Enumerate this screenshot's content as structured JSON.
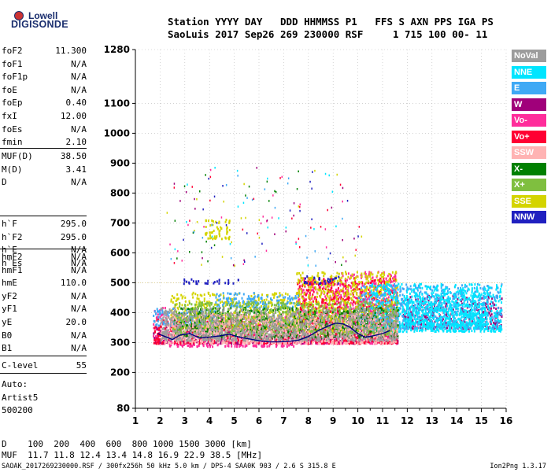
{
  "logo": {
    "line1": "Lowell",
    "line2": "DIGISONDE"
  },
  "header": {
    "labels": "Station YYYY DAY   DDD HHMMSS P1   FFS S AXN PPS IGA PS",
    "values": "SaoLuis 2017 Sep26 269 230000 RSF     1 715 100 00- 11"
  },
  "params_group1": [
    {
      "name": "foF2",
      "value": "11.300"
    },
    {
      "name": "foF1",
      "value": "N/A"
    },
    {
      "name": "foF1p",
      "value": "N/A"
    },
    {
      "name": "foE",
      "value": "N/A"
    },
    {
      "name": "foEp",
      "value": "0.40"
    },
    {
      "name": "fxI",
      "value": "12.00"
    },
    {
      "name": "foEs",
      "value": "N/A"
    },
    {
      "name": "fmin",
      "value": "2.10"
    }
  ],
  "params_group2": [
    {
      "name": "MUF(D)",
      "value": "38.50"
    },
    {
      "name": "M(D)",
      "value": "3.41"
    },
    {
      "name": "D",
      "value": "N/A"
    }
  ],
  "params_group3": [
    {
      "name": "h`F",
      "value": "295.0"
    },
    {
      "name": "h`F2",
      "value": "295.0"
    },
    {
      "name": "h`E",
      "value": "N/A"
    },
    {
      "name": "h`Es",
      "value": "N/A"
    }
  ],
  "params_group4": [
    {
      "name": "hmF2",
      "value": "N/A"
    },
    {
      "name": "hmF1",
      "value": "N/A"
    },
    {
      "name": "hmE",
      "value": "110.0"
    },
    {
      "name": "yF2",
      "value": "N/A"
    },
    {
      "name": "yF1",
      "value": "N/A"
    },
    {
      "name": "yE",
      "value": "20.0"
    },
    {
      "name": "B0",
      "value": "N/A"
    },
    {
      "name": "B1",
      "value": "N/A"
    }
  ],
  "clevel": {
    "name": "C-level",
    "value": "55"
  },
  "auto": {
    "line1": "Auto:",
    "line2": "Artist5",
    "line3": "500200"
  },
  "legend": [
    {
      "label": "NoVal",
      "color": "#9c9c9c"
    },
    {
      "label": "NNE",
      "color": "#00e5ff"
    },
    {
      "label": "E",
      "color": "#3fa9f5"
    },
    {
      "label": "W",
      "color": "#a0007a"
    },
    {
      "label": "Vo-",
      "color": "#ff2d9b"
    },
    {
      "label": "Vo+",
      "color": "#ff0033"
    },
    {
      "label": "SSW",
      "color": "#ffb3b3"
    },
    {
      "label": "X-",
      "color": "#008000"
    },
    {
      "label": "X+",
      "color": "#7fbf3f"
    },
    {
      "label": "SSE",
      "color": "#d4d400"
    },
    {
      "label": "NNW",
      "color": "#2020c0"
    }
  ],
  "bottom": {
    "d_row": "D    100  200  400  600  800 1000 1500 3000 [km]",
    "muf_row": "MUF  11.7 11.8 12.4 13.4 14.8 16.9 22.9 38.5 [MHz]"
  },
  "footer": {
    "left": "SAOAK_2017269230000.RSF / 300fx256h 50 kHz 5.0 km / DPS-4 SAA0K 903 / 2.6 S 315.8 E",
    "right": "Ion2Png 1.3.17"
  },
  "chart_data": {
    "type": "scatter",
    "title": "",
    "xlabel": "",
    "ylabel": "",
    "xlim": [
      1,
      16
    ],
    "ylim": [
      80,
      1280
    ],
    "x_ticks": [
      1,
      2,
      3,
      4,
      5,
      6,
      7,
      8,
      9,
      10,
      11,
      12,
      13,
      14,
      15,
      16
    ],
    "y_ticks": [
      80,
      200,
      300,
      400,
      500,
      600,
      700,
      800,
      900,
      1000,
      1100,
      1280
    ],
    "grid": "dotted",
    "legend_position": "right",
    "series": [
      {
        "label": "Vo-",
        "color": "#ff2d9b",
        "regions": [
          [
            1.7,
            2.3,
            300,
            420
          ],
          [
            2.3,
            7.5,
            290,
            400
          ],
          [
            7.5,
            9.2,
            300,
            520
          ],
          [
            9.2,
            11.6,
            300,
            540
          ]
        ]
      },
      {
        "label": "W",
        "color": "#a0007a",
        "regions": [
          [
            1.7,
            7.5,
            300,
            360
          ],
          [
            7.5,
            11.6,
            300,
            380
          ],
          [
            11.8,
            15.8,
            350,
            460
          ]
        ]
      },
      {
        "label": "Vo+",
        "color": "#ff0033",
        "regions": [
          [
            1.7,
            7.5,
            300,
            380
          ],
          [
            7.5,
            11.6,
            300,
            520
          ]
        ]
      },
      {
        "label": "SSE",
        "color": "#d4d400",
        "regions": [
          [
            2.4,
            7.5,
            350,
            470
          ],
          [
            7.5,
            11.6,
            340,
            540
          ],
          [
            3.8,
            4.8,
            650,
            720
          ]
        ]
      },
      {
        "label": "E",
        "color": "#3fa9f5",
        "regions": [
          [
            1.7,
            4.2,
            360,
            420
          ],
          [
            4.2,
            7.6,
            420,
            470
          ],
          [
            10.0,
            15.8,
            350,
            500
          ]
        ]
      },
      {
        "label": "NNE",
        "color": "#00e5ff",
        "regions": [
          [
            10.5,
            15.8,
            340,
            500
          ],
          [
            11.8,
            15.2,
            360,
            470
          ]
        ]
      },
      {
        "label": "NNW",
        "color": "#2020c0",
        "regions": [
          [
            2.9,
            5.2,
            500,
            515
          ],
          [
            7.8,
            9.2,
            500,
            525
          ]
        ]
      },
      {
        "label": "X-",
        "color": "#008000",
        "regions": [
          [
            2.5,
            11.6,
            320,
            420
          ]
        ]
      },
      {
        "label": "X+",
        "color": "#7fbf3f",
        "regions": [
          [
            2.5,
            11.6,
            330,
            440
          ]
        ]
      },
      {
        "label": "SSW",
        "color": "#ffb3b3",
        "regions": [
          [
            2.0,
            11.6,
            300,
            400
          ]
        ]
      },
      {
        "label": "NoVal",
        "color": "#9c9c9c",
        "regions": [
          [
            2.0,
            11.6,
            310,
            420
          ]
        ]
      }
    ],
    "trace": {
      "color": "#000080",
      "x": [
        1.9,
        2.2,
        2.5,
        2.8,
        3.2,
        3.6,
        4.0,
        4.4,
        4.8,
        5.2,
        5.6,
        6.0,
        6.4,
        6.8,
        7.2,
        7.6,
        8.0,
        8.4,
        8.8,
        9.1,
        9.4,
        9.7,
        10.0,
        10.3,
        10.6,
        11.0,
        11.3
      ],
      "y": [
        330,
        320,
        310,
        325,
        330,
        315,
        318,
        322,
        328,
        318,
        312,
        306,
        302,
        302,
        304,
        308,
        320,
        340,
        355,
        365,
        362,
        350,
        330,
        318,
        322,
        330,
        340
      ]
    }
  }
}
